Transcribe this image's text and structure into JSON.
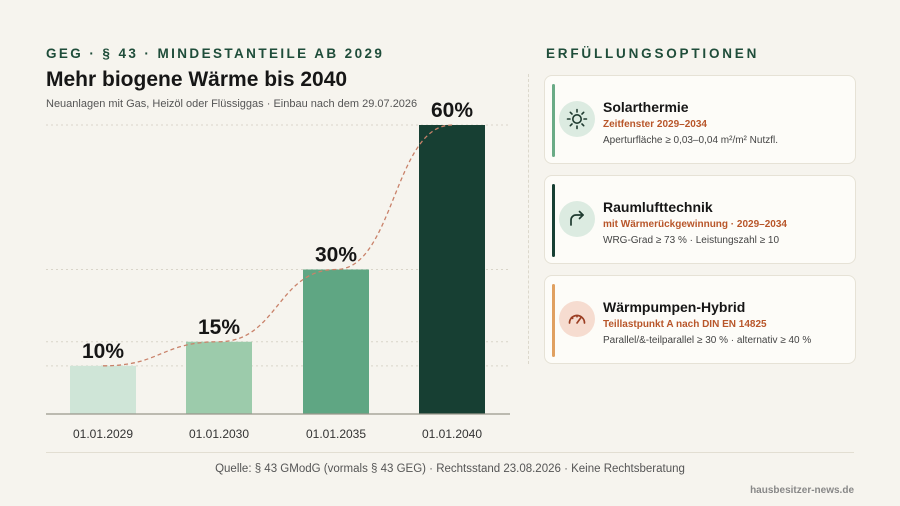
{
  "header": {
    "eyebrow": "GEG · § 43 · MINDESTANTEILE AB 2029",
    "title": "Mehr biogene Wärme bis 2040",
    "subtitle": "Neuanlagen mit Gas, Heizöl oder Flüssiggas · Einbau nach dem 29.07.2026"
  },
  "chart_data": {
    "type": "bar",
    "categories": [
      "01.01.2029",
      "01.01.2030",
      "01.01.2035",
      "01.01.2040"
    ],
    "values": [
      10,
      15,
      30,
      60
    ],
    "data_labels": [
      "10%",
      "15%",
      "30%",
      "60%"
    ],
    "ylim": [
      0,
      60
    ],
    "grid": true,
    "trend_line": "dashed",
    "colors": [
      "#cfe5d7",
      "#9ccbab",
      "#5fa683",
      "#173f33"
    ],
    "trend_color": "#c9826a"
  },
  "options": {
    "heading": "ERFÜLLUNGSOPTIONEN",
    "cards": [
      {
        "icon": "sun-icon",
        "title": "Solarthermie",
        "subtitle": "Zeitfenster 2029–2034",
        "desc": "Aperturfläche ≥ 0,03–0,04 m²/m² Nutzfl.",
        "accent": "#6aab86"
      },
      {
        "icon": "rotate-arrow-icon",
        "title": "Raumlufttechnik",
        "subtitle": "mit Wärmerückgewinnung · 2029–2034",
        "desc": "WRG-Grad ≥ 73 % · Leistungszahl ≥ 10",
        "accent": "#173f33"
      },
      {
        "icon": "gauge-icon",
        "title": "Wärmpumpen-Hybrid",
        "subtitle": "Teillastpunkt A nach DIN EN 14825",
        "desc": "Parallel/&-teilparallel ≥ 30 % · alternativ ≥ 40 %",
        "accent": "#e0a060"
      }
    ]
  },
  "footer": {
    "source": "Quelle: § 43 GModG (vormals § 43 GEG) · Rechtsstand 23.08.2026 · Keine Rechtsberatung",
    "brand": "hausbesitzer-news.de"
  }
}
